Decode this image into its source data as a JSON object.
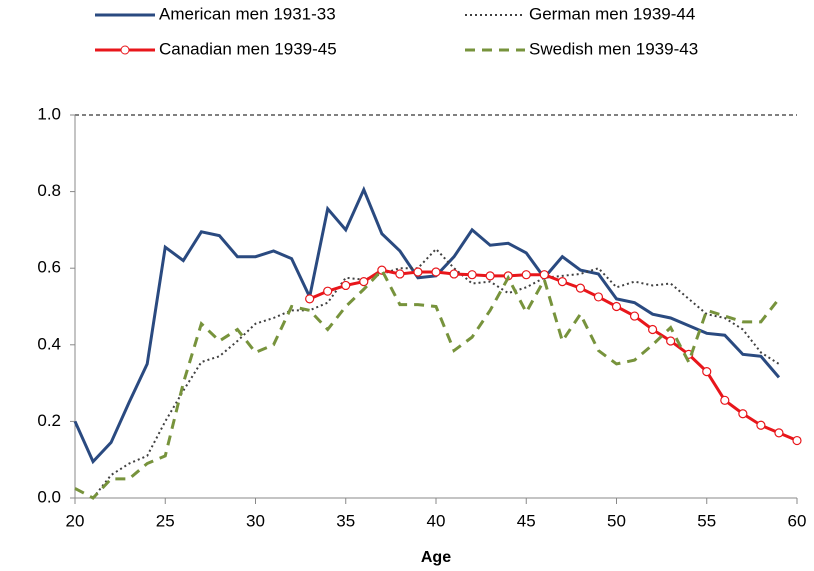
{
  "chart_data": {
    "type": "line",
    "x": [
      20,
      21,
      22,
      23,
      24,
      25,
      26,
      27,
      28,
      29,
      30,
      31,
      32,
      33,
      34,
      35,
      36,
      37,
      38,
      39,
      40,
      41,
      42,
      43,
      44,
      45,
      46,
      47,
      48,
      49,
      50,
      51,
      52,
      53,
      54,
      55,
      56,
      57,
      58,
      59,
      60
    ],
    "xlabel": "Age",
    "xlim": [
      20,
      60
    ],
    "xticks": [
      20,
      25,
      30,
      35,
      40,
      45,
      50,
      55,
      60
    ],
    "ylim": [
      0,
      1
    ],
    "yticks": [
      {
        "value": 0,
        "label": "0.0"
      },
      0.2,
      0.4,
      0.6,
      0.8,
      {
        "value": 1,
        "label": "1.0"
      }
    ],
    "series": [
      {
        "name": "American men 1931-33",
        "color": "#2a4a80",
        "dash": "solid",
        "marker": "none",
        "values": [
          0.2,
          0.095,
          0.145,
          0.25,
          0.35,
          0.655,
          0.62,
          0.695,
          0.685,
          0.63,
          0.63,
          0.645,
          0.625,
          0.525,
          0.755,
          0.7,
          0.805,
          0.69,
          0.645,
          0.575,
          0.58,
          0.63,
          0.7,
          0.66,
          0.665,
          0.64,
          0.575,
          0.63,
          0.595,
          0.585,
          0.52,
          0.51,
          0.48,
          0.47,
          0.45,
          0.43,
          0.425,
          0.375,
          0.37,
          0.315,
          null
        ]
      },
      {
        "name": "German men 1939-44",
        "color": "#404040",
        "dash": "dotted",
        "marker": "none",
        "values": [
          null,
          0.0,
          0.06,
          0.09,
          0.11,
          0.2,
          0.28,
          0.355,
          0.37,
          0.41,
          0.455,
          0.47,
          0.49,
          0.49,
          0.51,
          0.575,
          0.57,
          0.585,
          0.6,
          0.6,
          0.65,
          0.6,
          0.56,
          0.565,
          0.535,
          0.55,
          0.575,
          0.58,
          0.585,
          0.6,
          0.55,
          0.565,
          0.555,
          0.56,
          0.52,
          0.48,
          0.47,
          0.44,
          0.38,
          0.35,
          null
        ]
      },
      {
        "name": "Canadian men 1939-45",
        "color": "#e8161b",
        "dash": "solid",
        "marker": "circle",
        "values": [
          null,
          null,
          null,
          null,
          null,
          null,
          null,
          null,
          null,
          null,
          null,
          null,
          null,
          0.52,
          0.54,
          0.555,
          0.565,
          0.595,
          0.585,
          0.59,
          0.59,
          0.585,
          0.583,
          0.58,
          0.58,
          0.583,
          0.583,
          0.565,
          0.548,
          0.525,
          0.5,
          0.475,
          0.44,
          0.41,
          0.375,
          0.33,
          0.255,
          0.22,
          0.19,
          0.17,
          0.15
        ]
      },
      {
        "name": "Swedish men 1939-43",
        "color": "#77933c",
        "dash": "dashed",
        "marker": "none",
        "values": [
          0.025,
          0.0,
          0.05,
          0.05,
          0.09,
          0.11,
          0.3,
          0.455,
          0.41,
          0.44,
          0.38,
          0.4,
          0.5,
          0.49,
          0.44,
          0.5,
          0.545,
          0.595,
          0.505,
          0.505,
          0.5,
          0.385,
          0.42,
          0.49,
          0.575,
          0.485,
          0.57,
          0.41,
          0.48,
          0.385,
          0.35,
          0.36,
          0.4,
          0.445,
          0.355,
          0.49,
          0.475,
          0.46,
          0.46,
          0.52,
          null
        ]
      }
    ]
  }
}
